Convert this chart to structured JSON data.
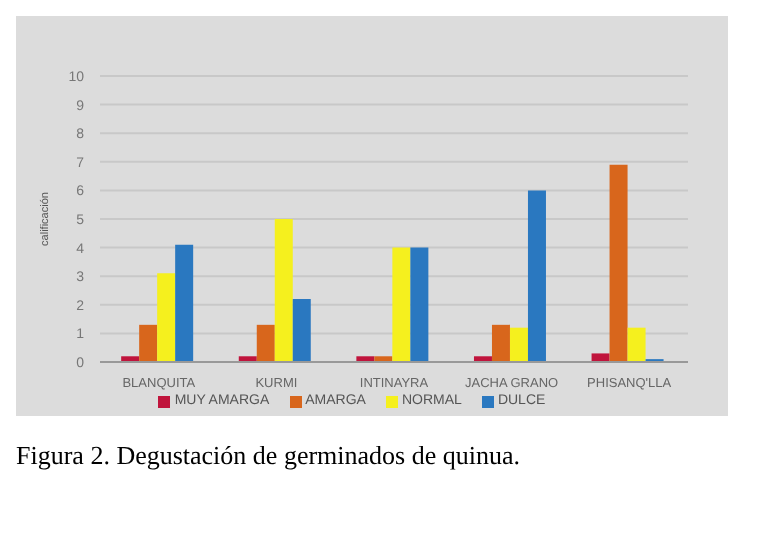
{
  "chart_data": {
    "type": "bar",
    "ylabel": "calificación",
    "categories": [
      "BLANQUITA",
      "KURMI",
      "INTINAYRA",
      "JACHA GRANO",
      "PHISANQ'LLA"
    ],
    "series": [
      {
        "name": "MUY AMARGA",
        "color": "#c0143c",
        "values": [
          0.2,
          0.2,
          0.2,
          0.2,
          0.3
        ]
      },
      {
        "name": "AMARGA",
        "color": "#d8661c",
        "values": [
          1.3,
          1.3,
          0.2,
          1.3,
          6.9
        ]
      },
      {
        "name": "NORMAL",
        "color": "#f5f01e",
        "values": [
          3.1,
          5,
          4,
          1.2,
          1.2
        ]
      },
      {
        "name": "DULCE",
        "color": "#2a78c0",
        "values": [
          4.1,
          2.2,
          4,
          6,
          0.1
        ]
      }
    ],
    "ylim": [
      0,
      10
    ],
    "yticks": [
      0,
      1,
      2,
      3,
      4,
      5,
      6,
      7,
      8,
      9,
      10
    ],
    "grid": "y",
    "legend": "bottom",
    "annotations": [
      "Figura 2. Degustación de germinados de quinua."
    ]
  }
}
